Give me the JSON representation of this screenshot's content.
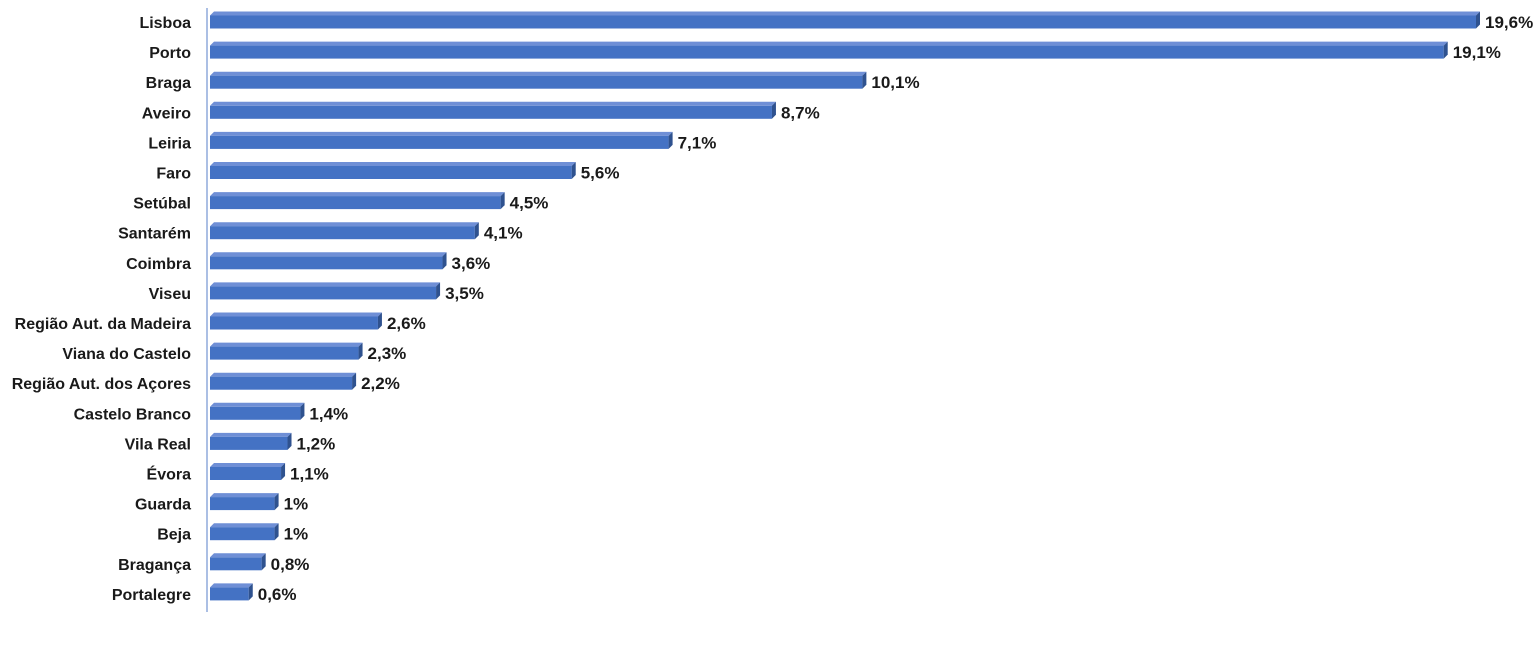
{
  "chart_data": {
    "type": "bar",
    "orientation": "horizontal",
    "style": "3d",
    "title": "",
    "xlabel": "",
    "ylabel": "",
    "categories": [
      "Lisboa",
      "Porto",
      "Braga",
      "Aveiro",
      "Leiria",
      "Faro",
      "Setúbal",
      "Santarém",
      "Coimbra",
      "Viseu",
      "Região Aut. da Madeira",
      "Viana do Castelo",
      "Região Aut. dos Açores",
      "Castelo Branco",
      "Vila Real",
      "Évora",
      "Guarda",
      "Beja",
      "Bragança",
      "Portalegre"
    ],
    "values": [
      19.6,
      19.1,
      10.1,
      8.7,
      7.1,
      5.6,
      4.5,
      4.1,
      3.6,
      3.5,
      2.6,
      2.3,
      2.2,
      1.4,
      1.2,
      1.1,
      1.0,
      1.0,
      0.8,
      0.6
    ],
    "value_labels": [
      "19,6%",
      "19,1%",
      "10,1%",
      "8,7%",
      "7,1%",
      "5,6%",
      "4,5%",
      "4,1%",
      "3,6%",
      "3,5%",
      "2,6%",
      "2,3%",
      "2,2%",
      "1,4%",
      "1,2%",
      "1,1%",
      "1%",
      "1%",
      "0,8%",
      "0,6%"
    ],
    "xlim": [
      0,
      19.6
    ],
    "grid": false,
    "legend": "none",
    "colors": {
      "bar_front": "#4472c4",
      "bar_top": "#6f8fd6",
      "bar_side": "#2f528f",
      "axis": "#8faadc"
    }
  }
}
